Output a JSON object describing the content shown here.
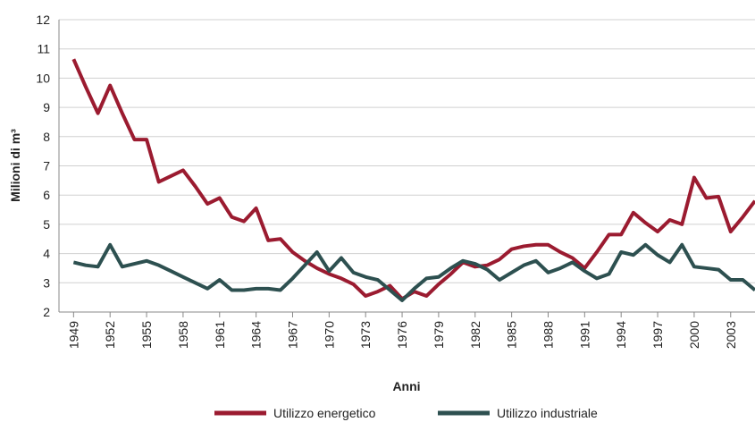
{
  "chart_data": {
    "type": "line",
    "y_label": "Milioni di m³",
    "x_label": "Anni",
    "x": [
      1949,
      1950,
      1951,
      1952,
      1953,
      1954,
      1955,
      1956,
      1957,
      1958,
      1959,
      1960,
      1961,
      1962,
      1963,
      1964,
      1965,
      1966,
      1967,
      1968,
      1969,
      1970,
      1971,
      1972,
      1973,
      1974,
      1975,
      1976,
      1977,
      1978,
      1979,
      1980,
      1981,
      1982,
      1983,
      1984,
      1985,
      1986,
      1987,
      1988,
      1989,
      1990,
      1991,
      1992,
      1993,
      1994,
      1995,
      1996,
      1997,
      1998,
      1999,
      2000,
      2001,
      2002,
      2003,
      2004,
      2005
    ],
    "series": [
      {
        "name": "Utilizzo energetico",
        "color": "#9b1b30",
        "values": [
          10.65,
          9.7,
          8.8,
          9.75,
          8.8,
          7.9,
          7.9,
          6.45,
          6.65,
          6.85,
          6.3,
          5.7,
          5.9,
          5.25,
          5.1,
          5.55,
          4.45,
          4.5,
          4.05,
          3.75,
          3.5,
          3.3,
          3.15,
          2.95,
          2.55,
          2.7,
          2.9,
          2.45,
          2.7,
          2.55,
          2.95,
          3.3,
          3.7,
          3.55,
          3.6,
          3.8,
          4.15,
          4.25,
          4.3,
          4.3,
          4.05,
          3.85,
          3.5,
          4.05,
          4.65,
          4.65,
          5.4,
          5.05,
          4.75,
          5.15,
          5.0,
          6.6,
          5.9,
          5.95,
          4.75,
          5.25,
          5.8
        ]
      },
      {
        "name": "Utilizzo industriale",
        "color": "#2d5050",
        "values": [
          3.7,
          3.6,
          3.55,
          4.3,
          3.55,
          3.65,
          3.75,
          3.6,
          3.4,
          3.2,
          3.0,
          2.8,
          3.1,
          2.75,
          2.75,
          2.8,
          2.8,
          2.75,
          3.15,
          3.6,
          4.05,
          3.4,
          3.85,
          3.35,
          3.2,
          3.1,
          2.75,
          2.4,
          2.8,
          3.15,
          3.2,
          3.5,
          3.75,
          3.65,
          3.45,
          3.1,
          3.35,
          3.6,
          3.75,
          3.35,
          3.5,
          3.7,
          3.4,
          3.15,
          3.3,
          4.05,
          3.95,
          4.3,
          3.95,
          3.7,
          4.3,
          3.55,
          3.5,
          3.45,
          3.1,
          3.1,
          2.75
        ]
      }
    ],
    "xlim": [
      1947.8,
      2005
    ],
    "xticks": [
      1949,
      1952,
      1955,
      1958,
      1961,
      1964,
      1967,
      1970,
      1973,
      1976,
      1979,
      1982,
      1985,
      1988,
      1991,
      1994,
      1997,
      2000,
      2003
    ],
    "ylim": [
      2,
      12
    ],
    "yticks": [
      2,
      3,
      4,
      5,
      6,
      7,
      8,
      9,
      10,
      11,
      12
    ],
    "grid": true,
    "legend": "bottom"
  }
}
